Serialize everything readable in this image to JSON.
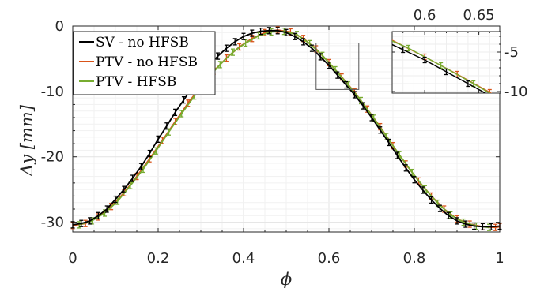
{
  "chart_data": [
    {
      "type": "line",
      "xlabel": "ϕ",
      "ylabel": "Δy [mm]",
      "xlim": [
        0,
        1
      ],
      "ylim": [
        -31.5,
        0
      ],
      "xticks": [
        "0",
        "0.2",
        "0.4",
        "0.6",
        "0.8",
        "1"
      ],
      "yticks": [
        "-30",
        "-20",
        "-10",
        "0"
      ],
      "grid": true,
      "legend_position": "top-left",
      "series": [
        {
          "name": "SV - no HFSB",
          "color": "#000000",
          "marker": "errorbar",
          "x": [
            0.0,
            0.02,
            0.04,
            0.06,
            0.08,
            0.1,
            0.12,
            0.14,
            0.16,
            0.18,
            0.2,
            0.22,
            0.24,
            0.26,
            0.28,
            0.3,
            0.32,
            0.34,
            0.36,
            0.38,
            0.4,
            0.42,
            0.44,
            0.46,
            0.48,
            0.5,
            0.52,
            0.54,
            0.56,
            0.58,
            0.6,
            0.62,
            0.64,
            0.66,
            0.68,
            0.7,
            0.72,
            0.74,
            0.76,
            0.78,
            0.8,
            0.82,
            0.84,
            0.86,
            0.88,
            0.9,
            0.92,
            0.94,
            0.96,
            0.98,
            1.0
          ],
          "y": [
            -30.4,
            -30.2,
            -29.8,
            -29.0,
            -28.0,
            -26.5,
            -25.0,
            -23.3,
            -21.5,
            -19.5,
            -17.3,
            -15.3,
            -13.2,
            -11.3,
            -9.4,
            -7.6,
            -6.0,
            -4.6,
            -3.4,
            -2.4,
            -1.6,
            -1.1,
            -0.8,
            -0.7,
            -0.7,
            -1.0,
            -1.6,
            -2.4,
            -3.4,
            -4.7,
            -6.0,
            -7.5,
            -9.0,
            -10.5,
            -12.2,
            -14.0,
            -15.9,
            -17.8,
            -19.8,
            -21.7,
            -23.5,
            -25.1,
            -26.6,
            -27.9,
            -29.0,
            -29.8,
            -30.3,
            -30.6,
            -30.7,
            -30.7,
            -30.6
          ]
        },
        {
          "name": "PTV - no HFSB",
          "color": "#d95319",
          "marker": "errorbar",
          "x": [
            0.0,
            0.03,
            0.06,
            0.09,
            0.12,
            0.15,
            0.18,
            0.21,
            0.24,
            0.27,
            0.3,
            0.33,
            0.36,
            0.39,
            0.42,
            0.45,
            0.48,
            0.51,
            0.54,
            0.57,
            0.6,
            0.63,
            0.66,
            0.69,
            0.72,
            0.75,
            0.78,
            0.81,
            0.84,
            0.87,
            0.9,
            0.93,
            0.96,
            0.99,
            1.0
          ],
          "y": [
            -30.5,
            -30.2,
            -29.2,
            -27.6,
            -25.5,
            -23.0,
            -20.3,
            -17.5,
            -14.6,
            -11.8,
            -9.2,
            -6.9,
            -4.9,
            -3.2,
            -1.9,
            -1.0,
            -0.6,
            -0.9,
            -1.9,
            -3.5,
            -5.6,
            -7.8,
            -10.1,
            -12.7,
            -15.4,
            -18.3,
            -21.1,
            -23.7,
            -26.0,
            -28.0,
            -29.5,
            -30.3,
            -30.7,
            -30.8,
            -30.7
          ]
        },
        {
          "name": "PTV - HFSB",
          "color": "#77ac30",
          "marker": "errorbar",
          "x": [
            0.015,
            0.045,
            0.075,
            0.105,
            0.135,
            0.165,
            0.195,
            0.225,
            0.255,
            0.285,
            0.315,
            0.345,
            0.375,
            0.405,
            0.435,
            0.465,
            0.495,
            0.525,
            0.555,
            0.585,
            0.615,
            0.645,
            0.675,
            0.705,
            0.735,
            0.765,
            0.795,
            0.825,
            0.855,
            0.885,
            0.915,
            0.945,
            0.975
          ],
          "y": [
            -30.4,
            -29.8,
            -28.6,
            -26.8,
            -24.4,
            -21.9,
            -19.1,
            -16.2,
            -13.4,
            -10.7,
            -8.1,
            -5.9,
            -4.0,
            -2.6,
            -1.5,
            -0.9,
            -0.8,
            -1.3,
            -2.7,
            -4.5,
            -6.7,
            -9.0,
            -11.4,
            -14.1,
            -16.9,
            -19.7,
            -22.4,
            -24.9,
            -27.1,
            -28.9,
            -30.0,
            -30.6,
            -30.8
          ]
        }
      ]
    },
    {
      "type": "line",
      "inset": true,
      "xlim": [
        0.57,
        0.67
      ],
      "ylim": [
        -10.2,
        -2.4
      ],
      "xticks": [
        "0.6",
        "0.65"
      ],
      "yticks": [
        "-5",
        "-10"
      ],
      "grid": true,
      "zoom_box": {
        "x": [
          0.57,
          0.67
        ],
        "y": [
          -9.7,
          -2.6
        ]
      }
    }
  ]
}
